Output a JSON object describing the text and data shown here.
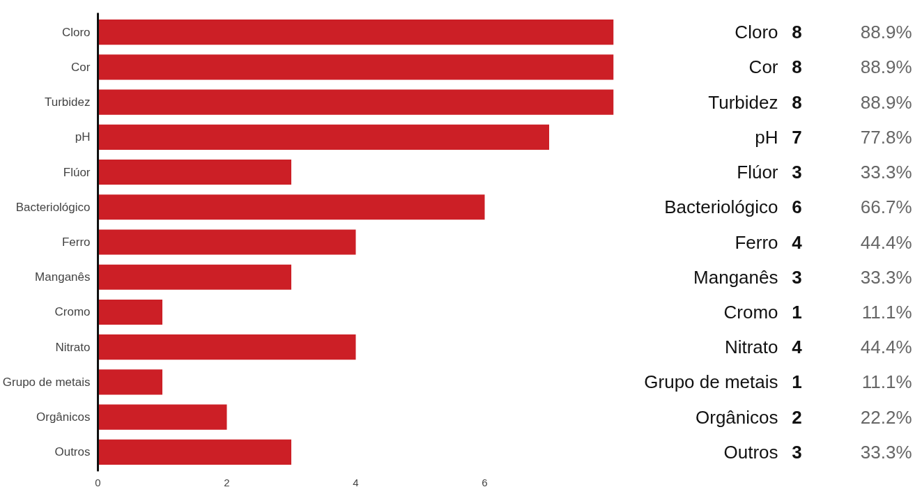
{
  "chart_data": {
    "type": "bar",
    "orientation": "horizontal",
    "categories": [
      "Cloro",
      "Cor",
      "Turbidez",
      "pH",
      "Flúor",
      "Bacteriológico",
      "Ferro",
      "Manganês",
      "Cromo",
      "Nitrato",
      "Grupo de metais",
      "Orgânicos",
      "Outros"
    ],
    "values": [
      8,
      8,
      8,
      7,
      3,
      6,
      4,
      3,
      1,
      4,
      1,
      2,
      3
    ],
    "color": "#cc1f26",
    "xlim": [
      0,
      8
    ],
    "xticks": [
      0,
      2,
      4,
      6
    ],
    "grid": false,
    "data_labels": true,
    "annotations": [
      "88.9%",
      "88.9%",
      "88.9%",
      "77.8%",
      "33.3%",
      "66.7%",
      "44.4%",
      "33.3%",
      "11.1%",
      "44.4%",
      "11.1%",
      "22.2%",
      "33.3%"
    ]
  }
}
